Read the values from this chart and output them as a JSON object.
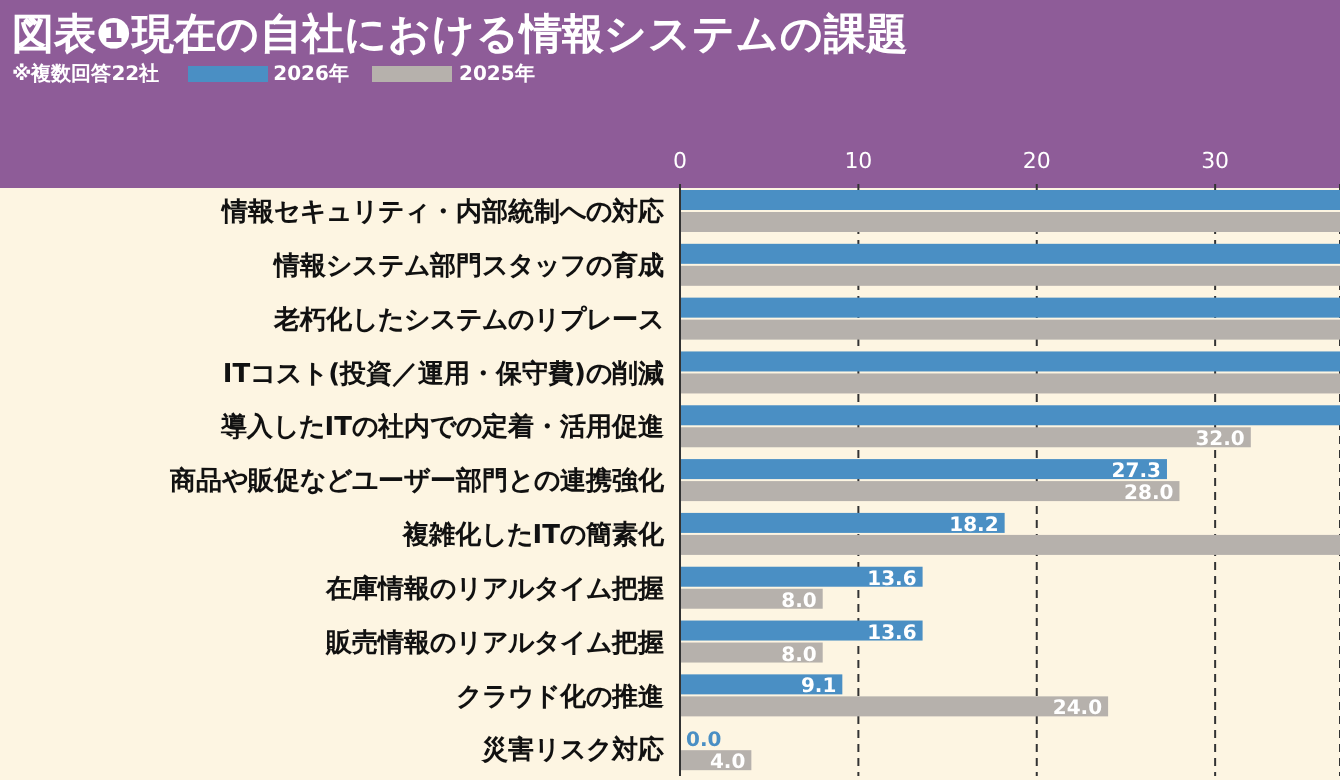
{
  "chart_data": {
    "type": "bar",
    "orientation": "horizontal",
    "title": "図表❶現在の自社における情報システムの課題",
    "subtitle": "※複数回答22社",
    "categories": [
      "情報セキュリティ・内部統制への対応",
      "情報システム部門スタッフの育成",
      "老朽化したシステムのリプレース",
      "ITコスト(投資／運用・保守費)の削減",
      "導入したITの社内での定着・活用促進",
      "商品や販促などユーザー部門との連携強化",
      "複雑化したITの簡素化",
      "在庫情報のリアルタイム把握",
      "販売情報のリアルタイム把握",
      "クラウド化の推進",
      "災害リスク対応"
    ],
    "series": [
      {
        "name": "2026年",
        "color": "#4a8fc4",
        "values": [
          37,
          37,
          37,
          37,
          37,
          27.3,
          18.2,
          13.6,
          13.6,
          9.1,
          0.0
        ],
        "value_labels": [
          null,
          null,
          null,
          null,
          null,
          "27.3",
          "18.2",
          "13.6",
          "13.6",
          "9.1",
          "0.0"
        ]
      },
      {
        "name": "2025年",
        "color": "#b6b1ac",
        "values": [
          37,
          37,
          37,
          37,
          32.0,
          28.0,
          37,
          8.0,
          8.0,
          24.0,
          4.0
        ],
        "value_labels": [
          null,
          null,
          null,
          null,
          "32.0",
          "28.0",
          null,
          "8.0",
          "8.0",
          "24.0",
          "4.0"
        ]
      }
    ],
    "xlim": [
      0,
      37
    ],
    "xticks": [
      0,
      10,
      20,
      30
    ],
    "grid": "x",
    "legend": "top left"
  }
}
